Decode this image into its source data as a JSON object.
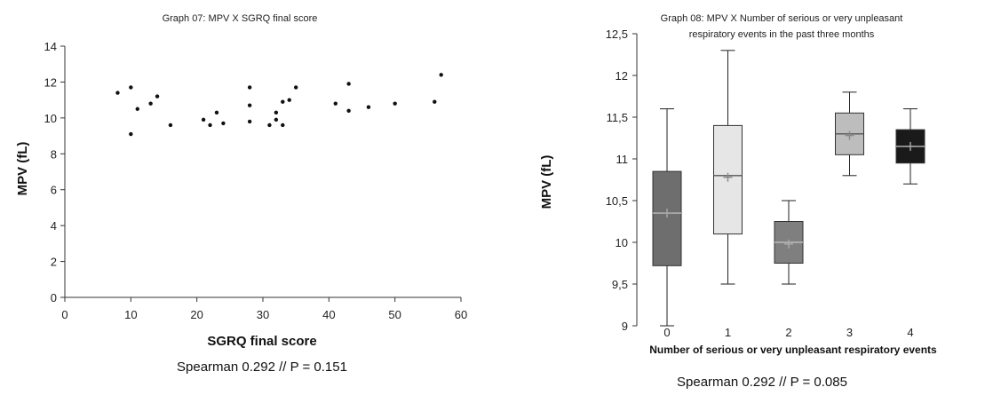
{
  "chart_data": [
    {
      "type": "scatter",
      "title": "Graph 07: MPV X SGRQ final score",
      "xlabel": "SGRQ final score",
      "ylabel": "MPV (fL)",
      "xlim": [
        0,
        60
      ],
      "ylim": [
        0,
        14
      ],
      "xticks": [
        "0",
        "10",
        "20",
        "30",
        "40",
        "50",
        "60"
      ],
      "yticks": [
        "0",
        "2",
        "4",
        "6",
        "8",
        "10",
        "12",
        "14"
      ],
      "grid": false,
      "color": "#111111",
      "points": [
        {
          "x": 8,
          "y": 11.4
        },
        {
          "x": 10,
          "y": 11.7
        },
        {
          "x": 10,
          "y": 9.1
        },
        {
          "x": 11,
          "y": 10.5
        },
        {
          "x": 13,
          "y": 10.8
        },
        {
          "x": 14,
          "y": 11.2
        },
        {
          "x": 16,
          "y": 9.6
        },
        {
          "x": 21,
          "y": 9.9
        },
        {
          "x": 22,
          "y": 9.6
        },
        {
          "x": 23,
          "y": 10.3
        },
        {
          "x": 24,
          "y": 9.7
        },
        {
          "x": 28,
          "y": 11.7
        },
        {
          "x": 28,
          "y": 10.7
        },
        {
          "x": 28,
          "y": 9.8
        },
        {
          "x": 31,
          "y": 9.6
        },
        {
          "x": 32,
          "y": 9.9
        },
        {
          "x": 32,
          "y": 10.3
        },
        {
          "x": 33,
          "y": 10.9
        },
        {
          "x": 33,
          "y": 9.6
        },
        {
          "x": 34,
          "y": 11.0
        },
        {
          "x": 35,
          "y": 11.7
        },
        {
          "x": 41,
          "y": 10.8
        },
        {
          "x": 43,
          "y": 11.9
        },
        {
          "x": 43,
          "y": 10.4
        },
        {
          "x": 46,
          "y": 10.6
        },
        {
          "x": 50,
          "y": 10.8
        },
        {
          "x": 56,
          "y": 10.9
        },
        {
          "x": 57,
          "y": 12.4
        }
      ],
      "footnote": "Spearman 0.292 // P = 0.151"
    },
    {
      "type": "box",
      "title_lines": [
        "Graph 08: MPV X Number of serious or very unpleasant",
        "respiratory events in the past three months"
      ],
      "xlabel": "Number of serious or very unpleasant respiratory events",
      "ylabel": "MPV (fL)",
      "ylim": [
        9,
        12.5
      ],
      "yticks": [
        "9",
        "9,5",
        "10",
        "10,5",
        "11",
        "11,5",
        "12",
        "12,5"
      ],
      "categories": [
        "0",
        "1",
        "2",
        "3",
        "4"
      ],
      "grid": false,
      "boxes": [
        {
          "category": "0",
          "min": 9.0,
          "q1": 9.72,
          "median": 10.35,
          "q3": 10.85,
          "max": 11.6,
          "mean": 10.35,
          "color": "#6e6e6e"
        },
        {
          "category": "1",
          "min": 9.5,
          "q1": 10.1,
          "median": 10.8,
          "q3": 11.4,
          "max": 12.3,
          "mean": 10.78,
          "color": "#e6e6e6"
        },
        {
          "category": "2",
          "min": 9.5,
          "q1": 9.75,
          "median": 10.0,
          "q3": 10.25,
          "max": 10.5,
          "mean": 9.98,
          "color": "#7f7f7f"
        },
        {
          "category": "3",
          "min": 10.8,
          "q1": 11.05,
          "median": 11.3,
          "q3": 11.55,
          "max": 11.8,
          "mean": 11.28,
          "color": "#bdbdbd"
        },
        {
          "category": "4",
          "min": 10.7,
          "q1": 10.95,
          "median": 11.15,
          "q3": 11.35,
          "max": 11.6,
          "mean": 11.15,
          "color": "#1a1a1a"
        }
      ],
      "footnote": "Spearman 0.292 // P = 0.085"
    }
  ]
}
